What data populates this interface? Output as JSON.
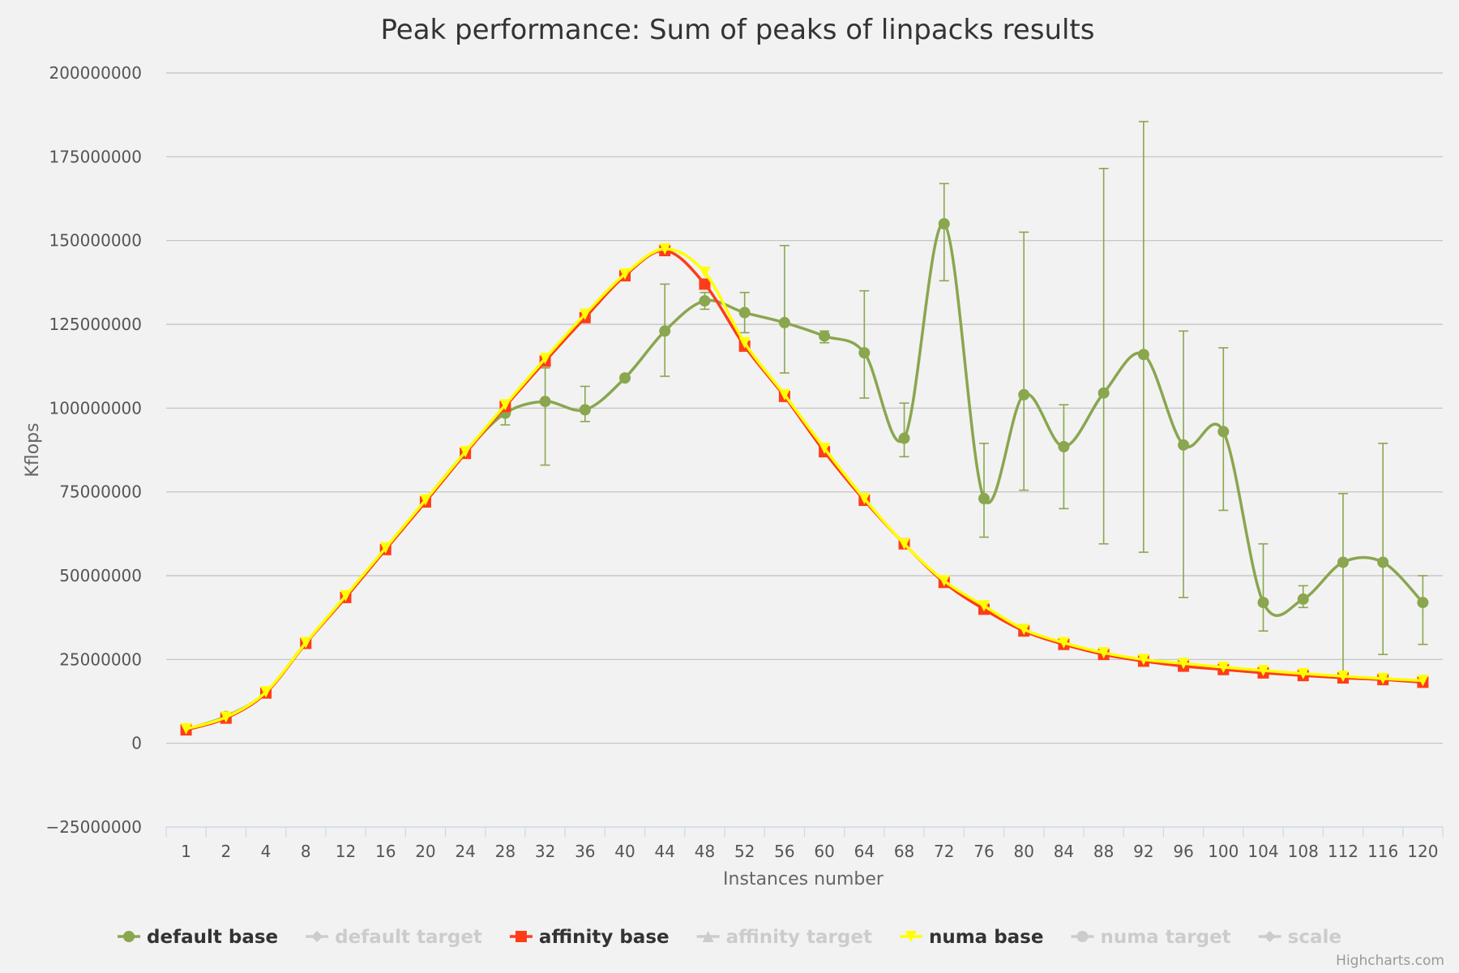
{
  "chart_data": {
    "type": "line",
    "title": "Peak performance: Sum of peaks of linpacks results",
    "xlabel": "Instances number",
    "ylabel": "Kflops",
    "categories": [
      "1",
      "2",
      "4",
      "8",
      "12",
      "16",
      "20",
      "24",
      "28",
      "32",
      "36",
      "40",
      "44",
      "48",
      "52",
      "56",
      "60",
      "64",
      "68",
      "72",
      "76",
      "80",
      "84",
      "88",
      "92",
      "96",
      "100",
      "104",
      "108",
      "112",
      "116",
      "120"
    ],
    "ylim": [
      -25000000,
      200000000
    ],
    "yticks": [
      "−25000000",
      "0",
      "25000000",
      "50000000",
      "75000000",
      "100000000",
      "125000000",
      "150000000",
      "175000000",
      "200000000"
    ],
    "grid": true,
    "legend_position": "bottom",
    "series": [
      {
        "name": "default base",
        "color": "#8aa64f",
        "marker": "circle",
        "visible": true,
        "values": [
          4200000,
          8000000,
          15200000,
          30000000,
          43500000,
          58000000,
          72500000,
          86800000,
          98500000,
          102000000,
          99500000,
          109000000,
          123000000,
          132000000,
          128500000,
          125500000,
          121500000,
          116500000,
          91000000,
          155000000,
          73000000,
          104000000,
          88500000,
          104500000,
          116000000,
          89000000,
          93000000,
          42000000,
          43000000,
          54000000,
          54000000,
          42000000
        ],
        "error_low": [
          null,
          null,
          null,
          null,
          null,
          null,
          null,
          null,
          95000000,
          83000000,
          96000000,
          null,
          109500000,
          129500000,
          122500000,
          110500000,
          119500000,
          103000000,
          85500000,
          138000000,
          61500000,
          75500000,
          70000000,
          59500000,
          57000000,
          43500000,
          69500000,
          33500000,
          40500000,
          21000000,
          26500000,
          29500000
        ],
        "error_high": [
          null,
          null,
          null,
          null,
          null,
          null,
          null,
          null,
          101000000,
          112000000,
          106500000,
          null,
          137000000,
          134500000,
          134500000,
          148500000,
          123000000,
          135000000,
          101500000,
          167000000,
          89500000,
          152500000,
          101000000,
          171500000,
          185500000,
          123000000,
          118000000,
          59500000,
          47000000,
          74500000,
          89500000,
          50000000
        ]
      },
      {
        "name": "default target",
        "color": "#cccccc",
        "marker": "diamond",
        "visible": false
      },
      {
        "name": "affinity base",
        "color": "#ff3c1a",
        "marker": "square",
        "visible": true,
        "values": [
          4000000,
          7500000,
          15000000,
          29800000,
          43500000,
          57800000,
          72000000,
          86500000,
          100500000,
          114000000,
          127000000,
          139500000,
          147000000,
          137000000,
          118500000,
          103500000,
          87000000,
          72500000,
          59500000,
          48000000,
          40000000,
          33500000,
          29500000,
          26500000,
          24500000,
          23000000,
          22000000,
          21000000,
          20200000,
          19500000,
          19000000,
          18200000
        ]
      },
      {
        "name": "affinity target",
        "color": "#cccccc",
        "marker": "triangle",
        "visible": false
      },
      {
        "name": "numa base",
        "color": "#ffff00",
        "marker": "triangle-down",
        "visible": true,
        "values": [
          4300000,
          7800000,
          15300000,
          30000000,
          44000000,
          58300000,
          72600000,
          87000000,
          101000000,
          114800000,
          128000000,
          140000000,
          147500000,
          140500000,
          119500000,
          104000000,
          88000000,
          73000000,
          59500000,
          48500000,
          41000000,
          34000000,
          30000000,
          27000000,
          25000000,
          23800000,
          22700000,
          21700000,
          20800000,
          20000000,
          19300000,
          18700000
        ]
      },
      {
        "name": "numa target",
        "color": "#cccccc",
        "marker": "circle",
        "visible": false
      },
      {
        "name": "scale",
        "color": "#cccccc",
        "marker": "diamond",
        "visible": false
      }
    ]
  },
  "credit": "Highcharts.com"
}
